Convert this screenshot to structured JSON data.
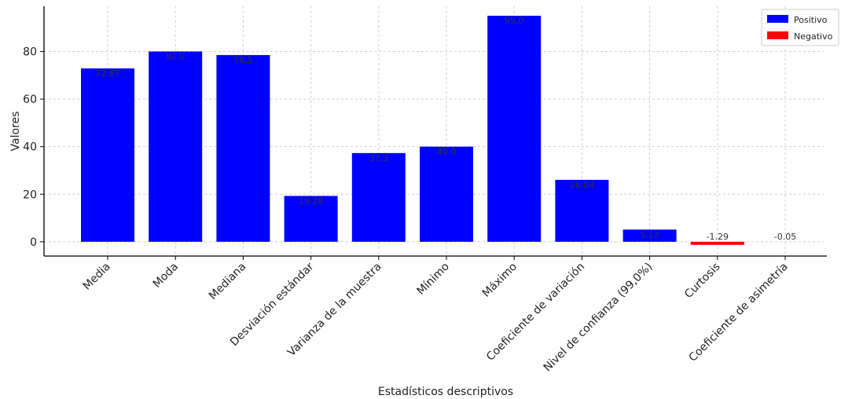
{
  "chart_data": {
    "type": "bar",
    "xlabel": "Estadísticos descriptivos",
    "ylabel": "Valores",
    "ylim": [
      -6,
      99
    ],
    "yticks": [
      0,
      20,
      40,
      60,
      80
    ],
    "grid": true,
    "legend_position": "top-right",
    "legend": [
      {
        "label": "Positivo",
        "color": "#0000ff"
      },
      {
        "label": "Negativo",
        "color": "#ff0000"
      }
    ],
    "categories": [
      "Media",
      "Moda",
      "Mediana",
      "Desviación estándar",
      "Varianza de la muestra",
      "Mínimo",
      "Máximo",
      "Coeficiente de variación",
      "Nivel de confianza (99,0%)",
      "Curtosis",
      "Coeficiente de asimetría"
    ],
    "values": [
      72.87,
      80.0,
      78.5,
      19.28,
      37.3,
      40.0,
      95.0,
      26.04,
      5.12,
      -1.29,
      -0.05
    ],
    "value_labels": [
      "72.87",
      "80.0",
      "78.5",
      "19.28",
      "37.3",
      "40.0",
      "95.0",
      "26.04",
      "5.12",
      "-1.29",
      "-0.05"
    ],
    "colors": {
      "positive": "#0000ff",
      "negative": "#ff0000"
    }
  }
}
